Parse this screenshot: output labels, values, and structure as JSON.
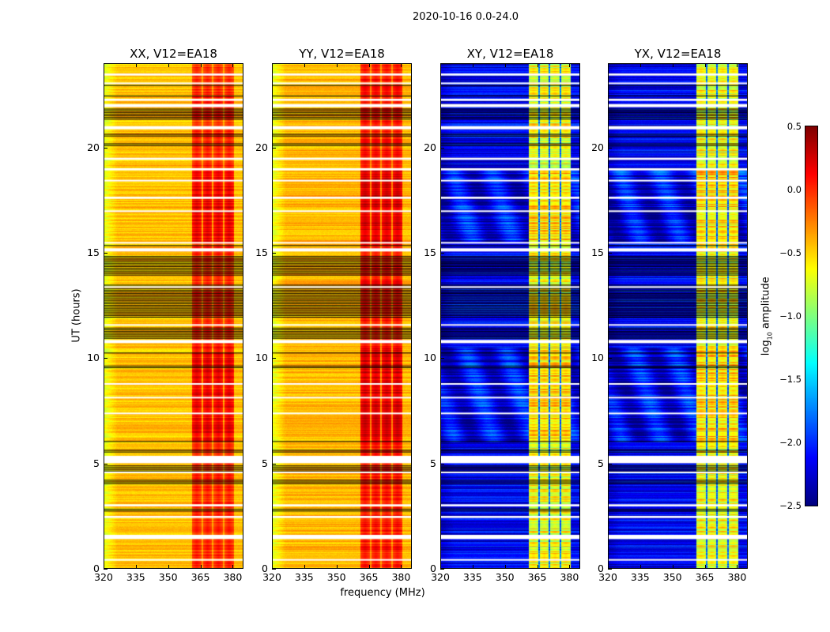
{
  "chart_data": {
    "type": "heatmap",
    "title": "2020-10-16 0.0-24.0",
    "xlabel": "frequency (MHz)",
    "ylabel": "UT (hours)",
    "xlim": [
      320,
      385
    ],
    "ylim": [
      0,
      24
    ],
    "xticks": [
      "320",
      "335",
      "350",
      "365",
      "380"
    ],
    "xtick_values": [
      320,
      335,
      350,
      365,
      380
    ],
    "yticks": [
      "0",
      "5",
      "10",
      "15",
      "20"
    ],
    "ytick_values": [
      0,
      5,
      10,
      15,
      20
    ],
    "colorbar": {
      "label_prefix": "log",
      "label_sub": "10",
      "label_suffix": " amplitude",
      "range": [
        -2.5,
        0.5
      ],
      "ticks": [
        "0.5",
        "0.0",
        "−0.5",
        "−1.0",
        "−1.5",
        "−2.0",
        "−2.5"
      ],
      "tick_values": [
        0.5,
        0.0,
        -0.5,
        -1.0,
        -1.5,
        -2.0,
        -2.5
      ],
      "colormap": "jet"
    },
    "panels": [
      {
        "title": "XX, V12=EA18",
        "kind": "parallel",
        "base": -0.45,
        "edge": -0.7,
        "band": 0.05,
        "gap": -0.35
      },
      {
        "title": "YY, V12=EA18",
        "kind": "parallel",
        "base": -0.42,
        "edge": -0.7,
        "band": 0.12,
        "gap": -0.3
      },
      {
        "title": "XY, V12=EA18",
        "kind": "cross",
        "base": -2.15,
        "edge": -2.3,
        "band": -0.6,
        "gap": -1.8
      },
      {
        "title": "YX, V12=EA18",
        "kind": "cross",
        "base": -2.15,
        "edge": -2.3,
        "band": -0.6,
        "gap": -1.8
      }
    ],
    "band_segments_mhz": [
      [
        361,
        365.5
      ],
      [
        366.2,
        370.5
      ],
      [
        371.2,
        375.6
      ],
      [
        376.3,
        380.6
      ]
    ],
    "flagged_hours_white": [
      [
        23.45,
        23.55
      ],
      [
        23.05,
        23.12
      ],
      [
        22.25,
        22.35
      ],
      [
        21.95,
        22.1
      ],
      [
        20.9,
        21.05
      ],
      [
        19.45,
        19.55
      ],
      [
        18.95,
        19.05
      ],
      [
        18.45,
        18.5
      ],
      [
        17.6,
        17.7
      ],
      [
        17.0,
        17.05
      ],
      [
        15.5,
        15.55
      ],
      [
        15.1,
        15.25
      ],
      [
        13.4,
        13.45
      ],
      [
        11.6,
        11.65
      ],
      [
        10.75,
        10.9
      ],
      [
        8.8,
        8.85
      ],
      [
        8.15,
        8.2
      ],
      [
        7.4,
        7.45
      ],
      [
        5.05,
        5.4
      ],
      [
        4.6,
        4.65
      ],
      [
        3.0,
        3.1
      ],
      [
        2.45,
        2.55
      ],
      [
        1.45,
        1.65
      ],
      [
        0.45,
        0.5
      ]
    ],
    "dead_hours_black": [
      [
        23.0,
        23.04
      ],
      [
        22.5,
        22.55
      ],
      [
        21.4,
        21.9
      ],
      [
        20.6,
        20.7
      ],
      [
        20.15,
        20.25
      ],
      [
        15.4,
        15.45
      ],
      [
        14.0,
        14.9
      ],
      [
        12.0,
        13.6
      ],
      [
        11.0,
        11.5
      ],
      [
        10.3,
        10.35
      ],
      [
        9.6,
        9.7
      ],
      [
        6.1,
        6.15
      ],
      [
        5.6,
        5.7
      ],
      [
        4.7,
        4.95
      ],
      [
        4.1,
        4.3
      ],
      [
        2.8,
        2.9
      ]
    ]
  }
}
